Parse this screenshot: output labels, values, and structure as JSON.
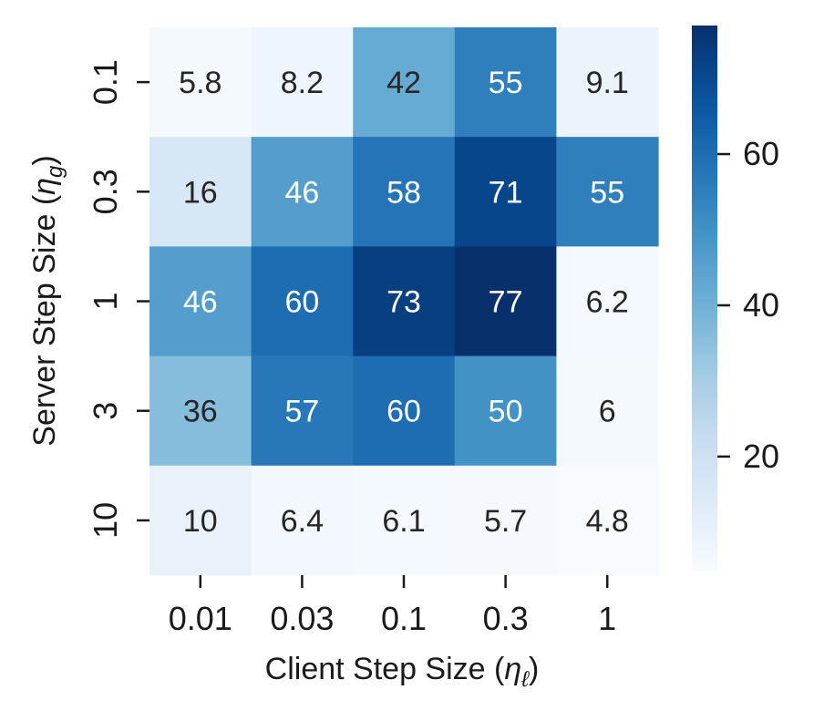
{
  "chart_data": {
    "type": "heatmap",
    "xlabel_text": "Client Step Size (",
    "xlabel_symbol": "η",
    "xlabel_sub": "ℓ",
    "xlabel_close": ")",
    "ylabel_text": "Server Step Size (",
    "ylabel_symbol": "η",
    "ylabel_sub": "g",
    "ylabel_close": ")",
    "x_categories": [
      "0.01",
      "0.03",
      "0.1",
      "0.3",
      "1"
    ],
    "y_categories": [
      "0.1",
      "0.3",
      "1",
      "3",
      "10"
    ],
    "values": [
      [
        5.8,
        8.2,
        42,
        55,
        9.1
      ],
      [
        16,
        46,
        58,
        71,
        55
      ],
      [
        46,
        60,
        73,
        77,
        6.2
      ],
      [
        36,
        57,
        60,
        50,
        6
      ],
      [
        10,
        6.4,
        6.1,
        5.7,
        4.8
      ]
    ],
    "labels": [
      [
        "5.8",
        "8.2",
        "42",
        "55",
        "9.1"
      ],
      [
        "16",
        "46",
        "58",
        "71",
        "55"
      ],
      [
        "46",
        "60",
        "73",
        "77",
        "6.2"
      ],
      [
        "36",
        "57",
        "60",
        "50",
        "6"
      ],
      [
        "10",
        "6.4",
        "6.1",
        "5.7",
        "4.8"
      ]
    ],
    "colormap": "Blues",
    "vmin": 4.8,
    "vmax": 77,
    "colorbar_ticks": [
      {
        "value": 20,
        "label": "20"
      },
      {
        "value": 40,
        "label": "40"
      },
      {
        "value": 60,
        "label": "60"
      }
    ]
  }
}
